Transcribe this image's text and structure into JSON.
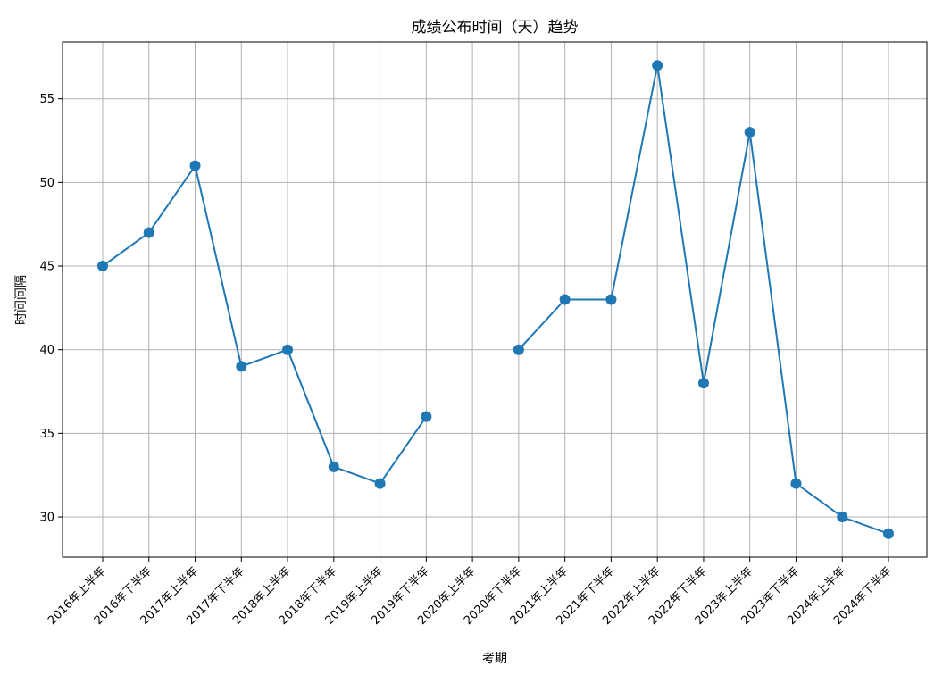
{
  "chart_data": {
    "type": "line",
    "title": "成绩公布时间（天）趋势",
    "xlabel": "考期",
    "ylabel": "时间间隔",
    "categories": [
      "2016年上半年",
      "2016年下半年",
      "2017年上半年",
      "2017年下半年",
      "2018年上半年",
      "2018年下半年",
      "2019年上半年",
      "2019年下半年",
      "2020年上半年",
      "2020年下半年",
      "2021年上半年",
      "2021年下半年",
      "2022年上半年",
      "2022年下半年",
      "2023年上半年",
      "2023年下半年",
      "2024年上半年",
      "2024年下半年"
    ],
    "series": [
      {
        "values": [
          45,
          47,
          51,
          39,
          40,
          33,
          32,
          36,
          null,
          40,
          43,
          43,
          57,
          38,
          53,
          32,
          30,
          29
        ],
        "color": "#1f77b4",
        "marker": "circle"
      }
    ],
    "ylim": [
      27.6,
      58.4
    ],
    "yticks": [
      30,
      35,
      40,
      45,
      50,
      55
    ],
    "grid": true
  }
}
